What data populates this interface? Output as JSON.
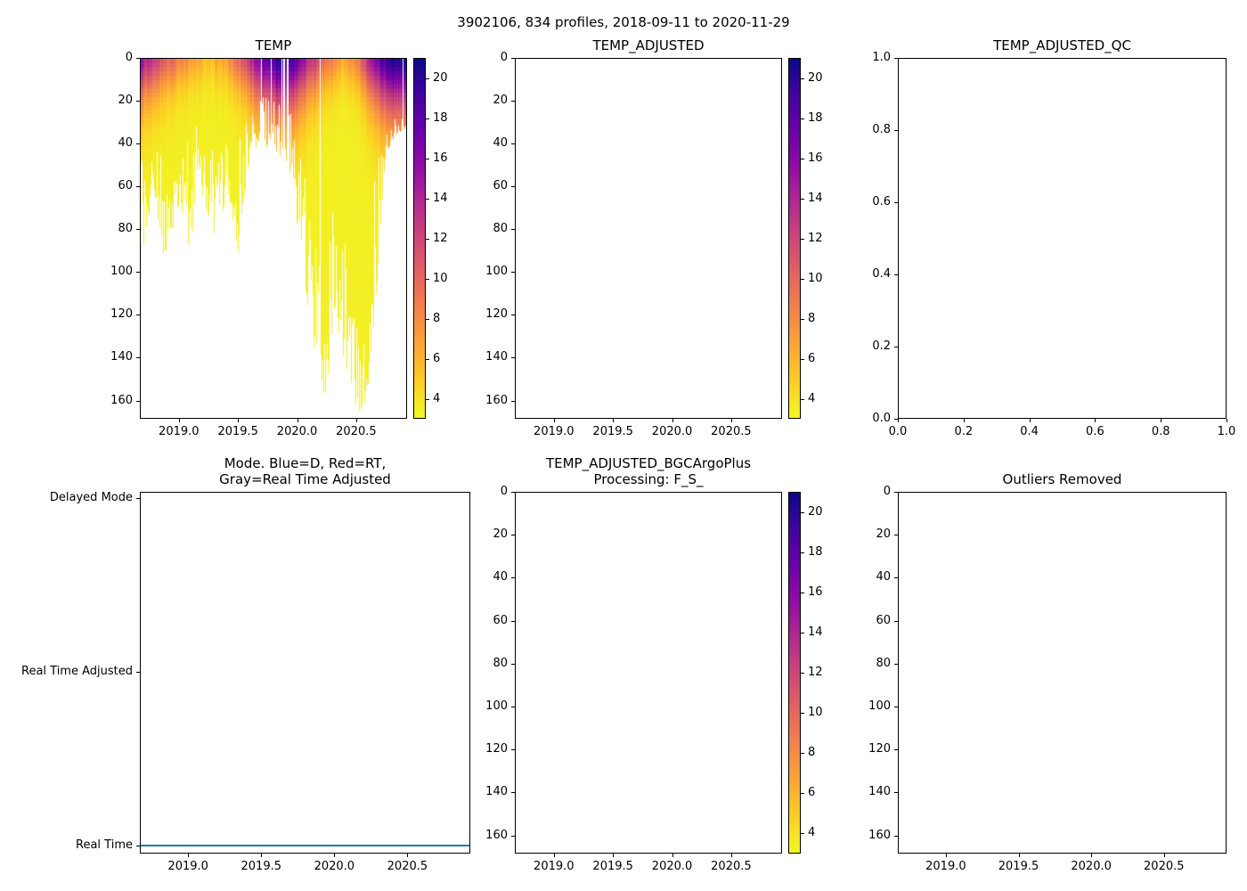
{
  "figure": {
    "suptitle": "3902106, 834 profiles, 2018-09-11 to 2020-11-29"
  },
  "colors": {
    "axis": "#000000",
    "mode_line": "#1f77b4",
    "colormap": "plasma_reversed",
    "plasma_stops": [
      "#0d0887",
      "#41049d",
      "#6a00a8",
      "#8f0da4",
      "#b12a90",
      "#cc4778",
      "#e16462",
      "#f2844b",
      "#fca636",
      "#fcce25",
      "#f0f921"
    ]
  },
  "chart_data": [
    {
      "id": "temp",
      "type": "scatter",
      "title": "TEMP",
      "xlabel": "",
      "ylabel": "",
      "xlim": [
        2018.67,
        2020.93
      ],
      "ylim": [
        0,
        168.5
      ],
      "y_axis_inverted": true,
      "x_tick_values": [
        2019.0,
        2019.5,
        2020.0,
        2020.5
      ],
      "x_tick_labels": [
        "2019.0",
        "2019.5",
        "2020.0",
        "2020.5"
      ],
      "y_tick_values": [
        0,
        20,
        40,
        60,
        80,
        100,
        120,
        140,
        160
      ],
      "y_tick_labels": [
        "0",
        "20",
        "40",
        "60",
        "80",
        "100",
        "120",
        "140",
        "160"
      ],
      "colorbar": {
        "vmin": 3,
        "vmax": 21,
        "ticks": [
          4,
          6,
          8,
          10,
          12,
          14,
          16,
          18,
          20
        ],
        "tick_labels": [
          "4",
          "6",
          "8",
          "10",
          "12",
          "14",
          "16",
          "18",
          "20"
        ]
      },
      "profiles": {
        "total": 834,
        "deep_temp": 3.4,
        "depth_envelope": [
          [
            2018.69,
            85
          ],
          [
            2018.78,
            62
          ],
          [
            2018.87,
            88
          ],
          [
            2019.0,
            66
          ],
          [
            2019.08,
            84
          ],
          [
            2019.18,
            58
          ],
          [
            2019.3,
            78
          ],
          [
            2019.42,
            60
          ],
          [
            2019.5,
            86
          ],
          [
            2019.6,
            48
          ],
          [
            2019.72,
            38
          ],
          [
            2019.85,
            44
          ],
          [
            2019.95,
            52
          ],
          [
            2020.05,
            95
          ],
          [
            2020.15,
            135
          ],
          [
            2020.25,
            150
          ],
          [
            2020.33,
            115
          ],
          [
            2020.42,
            142
          ],
          [
            2020.5,
            160
          ],
          [
            2020.58,
            165
          ],
          [
            2020.65,
            128
          ],
          [
            2020.7,
            85
          ],
          [
            2020.76,
            42
          ],
          [
            2020.85,
            34
          ],
          [
            2020.91,
            33
          ]
        ],
        "surface_temp": [
          [
            2018.69,
            15
          ],
          [
            2018.8,
            12
          ],
          [
            2018.95,
            9
          ],
          [
            2019.1,
            7
          ],
          [
            2019.25,
            5.5
          ],
          [
            2019.4,
            7
          ],
          [
            2019.55,
            11
          ],
          [
            2019.7,
            17
          ],
          [
            2019.85,
            20
          ],
          [
            2019.98,
            18
          ],
          [
            2020.1,
            14
          ],
          [
            2020.25,
            9
          ],
          [
            2020.4,
            6
          ],
          [
            2020.5,
            8
          ],
          [
            2020.6,
            13
          ],
          [
            2020.72,
            18
          ],
          [
            2020.85,
            20.5
          ],
          [
            2020.91,
            21
          ]
        ]
      }
    },
    {
      "id": "temp_adjusted",
      "type": "scatter",
      "title": "TEMP_ADJUSTED",
      "empty": true,
      "xlim": [
        2018.67,
        2020.93
      ],
      "ylim": [
        0,
        168.5
      ],
      "y_axis_inverted": true,
      "x_tick_values": [
        2019.0,
        2019.5,
        2020.0,
        2020.5
      ],
      "x_tick_labels": [
        "2019.0",
        "2019.5",
        "2020.0",
        "2020.5"
      ],
      "y_tick_values": [
        0,
        20,
        40,
        60,
        80,
        100,
        120,
        140,
        160
      ],
      "y_tick_labels": [
        "0",
        "20",
        "40",
        "60",
        "80",
        "100",
        "120",
        "140",
        "160"
      ],
      "colorbar": {
        "vmin": 3,
        "vmax": 21,
        "ticks": [
          4,
          6,
          8,
          10,
          12,
          14,
          16,
          18,
          20
        ],
        "tick_labels": [
          "4",
          "6",
          "8",
          "10",
          "12",
          "14",
          "16",
          "18",
          "20"
        ]
      },
      "values": []
    },
    {
      "id": "temp_adjusted_qc",
      "type": "scatter",
      "title": "TEMP_ADJUSTED_QC",
      "empty": true,
      "xlim": [
        0,
        1
      ],
      "ylim": [
        1,
        0
      ],
      "x_tick_values": [
        0.0,
        0.2,
        0.4,
        0.6,
        0.8,
        1.0
      ],
      "x_tick_labels": [
        "0.0",
        "0.2",
        "0.4",
        "0.6",
        "0.8",
        "1.0"
      ],
      "y_tick_values": [
        0.0,
        0.2,
        0.4,
        0.6,
        0.8,
        1.0
      ],
      "y_tick_labels": [
        "0.0",
        "0.2",
        "0.4",
        "0.6",
        "0.8",
        "1.0"
      ],
      "values": []
    },
    {
      "id": "mode",
      "type": "line",
      "title_lines": [
        "Mode. Blue=D, Red=RT,",
        "Gray=Real Time Adjusted"
      ],
      "xlim": [
        2018.67,
        2020.93
      ],
      "x_tick_values": [
        2019.0,
        2019.5,
        2020.0,
        2020.5
      ],
      "x_tick_labels": [
        "2019.0",
        "2019.5",
        "2020.0",
        "2020.5"
      ],
      "categories": [
        "Real Time",
        "Real Time Adjusted",
        "Delayed Mode"
      ],
      "series": [
        {
          "name": "mode",
          "value": "Real Time",
          "color": "#1f77b4",
          "x_start": 2018.67,
          "x_end": 2020.93
        }
      ]
    },
    {
      "id": "temp_adjusted_bgc",
      "type": "scatter",
      "title_lines": [
        "TEMP_ADJUSTED_BGCArgoPlus",
        "Processing: F_S_"
      ],
      "empty": true,
      "xlim": [
        2018.67,
        2020.93
      ],
      "ylim": [
        0,
        168.5
      ],
      "y_axis_inverted": true,
      "x_tick_values": [
        2019.0,
        2019.5,
        2020.0,
        2020.5
      ],
      "x_tick_labels": [
        "2019.0",
        "2019.5",
        "2020.0",
        "2020.5"
      ],
      "y_tick_values": [
        0,
        20,
        40,
        60,
        80,
        100,
        120,
        140,
        160
      ],
      "y_tick_labels": [
        "0",
        "20",
        "40",
        "60",
        "80",
        "100",
        "120",
        "140",
        "160"
      ],
      "colorbar": {
        "vmin": 3,
        "vmax": 21,
        "ticks": [
          4,
          6,
          8,
          10,
          12,
          14,
          16,
          18,
          20
        ],
        "tick_labels": [
          "4",
          "6",
          "8",
          "10",
          "12",
          "14",
          "16",
          "18",
          "20"
        ]
      },
      "values": []
    },
    {
      "id": "outliers",
      "type": "scatter",
      "title": "Outliers Removed",
      "empty": true,
      "xlim": [
        2018.67,
        2020.93
      ],
      "ylim": [
        0,
        168.5
      ],
      "y_axis_inverted": true,
      "x_tick_values": [
        2019.0,
        2019.5,
        2020.0,
        2020.5
      ],
      "x_tick_labels": [
        "2019.0",
        "2019.5",
        "2020.0",
        "2020.5"
      ],
      "y_tick_values": [
        0,
        20,
        40,
        60,
        80,
        100,
        120,
        140,
        160
      ],
      "y_tick_labels": [
        "0",
        "20",
        "40",
        "60",
        "80",
        "100",
        "120",
        "140",
        "160"
      ],
      "values": []
    }
  ]
}
